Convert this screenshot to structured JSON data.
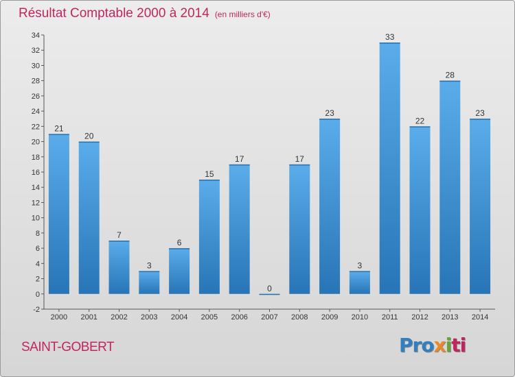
{
  "header": {
    "title": "Résultat Comptable 2000 à 2014",
    "subtitle": "(en milliers d'€)"
  },
  "footer": {
    "commune": "SAINT-GOBERT",
    "logo": [
      "Pro",
      "x",
      "i",
      "ti"
    ]
  },
  "colors": {
    "title": "#c0265e",
    "bar_top": "#5aacea",
    "bar_bottom": "#2775b6"
  },
  "chart_data": {
    "type": "bar",
    "title": "Résultat Comptable 2000 à 2014",
    "subtitle": "(en milliers d'€)",
    "xlabel": "",
    "ylabel": "",
    "categories": [
      "2000",
      "2001",
      "2002",
      "2003",
      "2004",
      "2005",
      "2006",
      "2007",
      "2008",
      "2009",
      "2010",
      "2011",
      "2012",
      "2013",
      "2014"
    ],
    "values": [
      21,
      20,
      7,
      3,
      6,
      15,
      17,
      0,
      17,
      23,
      3,
      33,
      22,
      28,
      23
    ],
    "ylim": [
      -2,
      34
    ],
    "yticks": [
      -2,
      0,
      2,
      4,
      6,
      8,
      10,
      12,
      14,
      16,
      18,
      20,
      22,
      24,
      26,
      28,
      30,
      32,
      34
    ],
    "grid": false,
    "legend": "none"
  }
}
